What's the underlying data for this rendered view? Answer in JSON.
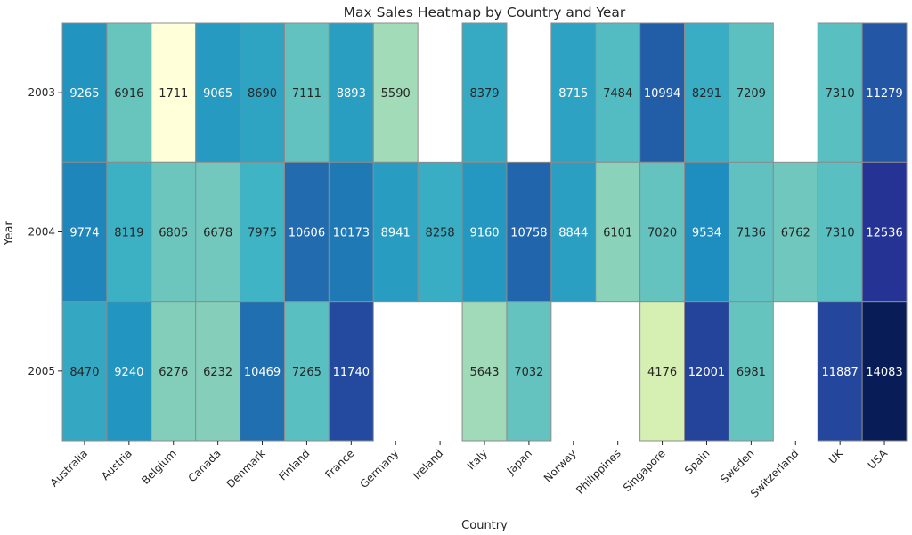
{
  "chart_data": {
    "type": "heatmap",
    "title": "Max Sales Heatmap by Country and Year",
    "xlabel": "Country",
    "ylabel": "Year",
    "x_categories": [
      "Australia",
      "Austria",
      "Belgium",
      "Canada",
      "Denmark",
      "Finland",
      "France",
      "Germany",
      "Ireland",
      "Italy",
      "Japan",
      "Norway",
      "Philippines",
      "Singapore",
      "Spain",
      "Sweden",
      "Switzerland",
      "UK",
      "USA"
    ],
    "y_categories": [
      "2003",
      "2004",
      "2005"
    ],
    "values": [
      [
        9265,
        6916,
        1711,
        9065,
        8690,
        7111,
        8893,
        5590,
        null,
        8379,
        null,
        8715,
        7484,
        10994,
        8291,
        7209,
        null,
        7310,
        11279
      ],
      [
        9774,
        8119,
        6805,
        6678,
        7975,
        10606,
        10173,
        8941,
        8258,
        9160,
        10758,
        8844,
        6101,
        7020,
        9534,
        7136,
        6762,
        7310,
        12536
      ],
      [
        8470,
        9240,
        6276,
        6232,
        10469,
        7265,
        11740,
        null,
        null,
        5643,
        7032,
        null,
        null,
        4176,
        12001,
        6981,
        null,
        11887,
        14083
      ]
    ],
    "colormap": "YlGnBu",
    "vmin": 1711,
    "vmax": 14083,
    "annotations": true
  }
}
